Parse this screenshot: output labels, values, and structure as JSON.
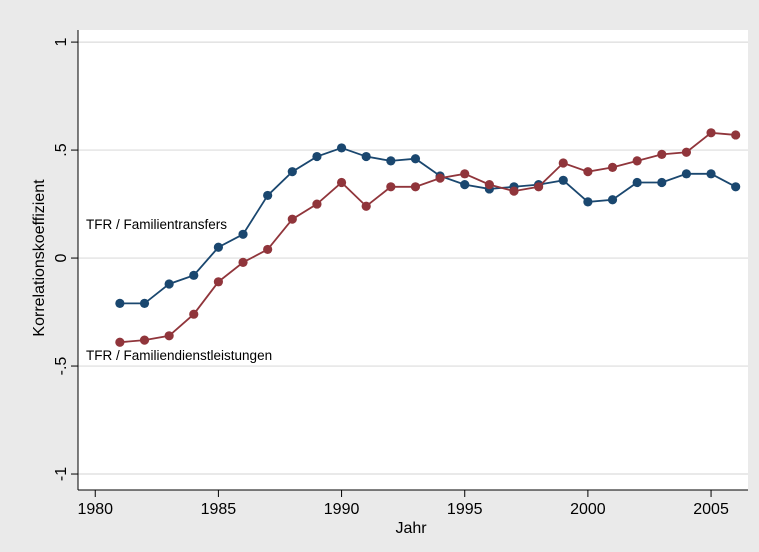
{
  "chart_data": {
    "type": "line",
    "x_label": "Jahr",
    "y_label": "Korrelationskoeffizient",
    "x": [
      1981,
      1982,
      1983,
      1984,
      1985,
      1986,
      1987,
      1988,
      1989,
      1990,
      1991,
      1992,
      1993,
      1994,
      1995,
      1996,
      1997,
      1998,
      1999,
      2000,
      2001,
      2002,
      2003,
      2004,
      2005,
      2006
    ],
    "series": [
      {
        "name": "TFR / Familientransfers",
        "color": "#1a476f",
        "values": [
          -0.21,
          -0.21,
          -0.12,
          -0.08,
          0.05,
          0.11,
          0.29,
          0.4,
          0.47,
          0.51,
          0.47,
          0.45,
          0.46,
          0.38,
          0.34,
          0.32,
          0.33,
          0.34,
          0.36,
          0.26,
          0.27,
          0.35,
          0.35,
          0.39,
          0.39,
          0.33
        ]
      },
      {
        "name": "TFR / Familiendienstleistungen",
        "color": "#90353b",
        "values": [
          -0.39,
          -0.38,
          -0.36,
          -0.26,
          -0.11,
          -0.02,
          0.04,
          0.18,
          0.25,
          0.35,
          0.24,
          0.33,
          0.33,
          0.37,
          0.39,
          0.34,
          0.31,
          0.33,
          0.44,
          0.4,
          0.42,
          0.45,
          0.48,
          0.49,
          0.58,
          0.57
        ]
      }
    ],
    "xlim": [
      1979.3,
      2006.5
    ],
    "xticks": [
      1980,
      1985,
      1990,
      1995,
      2000,
      2005
    ],
    "ylim": [
      -1.074,
      1.056
    ],
    "yticks": [
      -1,
      {
        "value": -0.5,
        "label": "-.5"
      },
      0,
      {
        "value": 0.5,
        "label": ".5"
      },
      1
    ],
    "grid": true
  }
}
